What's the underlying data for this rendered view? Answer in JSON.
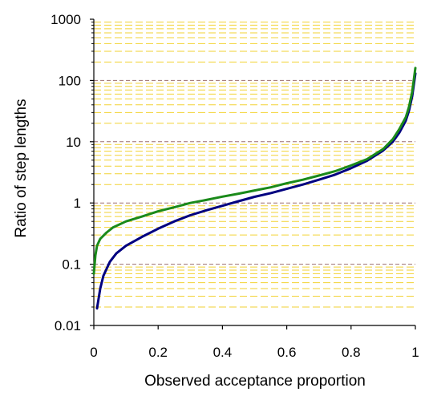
{
  "chart_data": {
    "type": "line",
    "title": "",
    "xlabel": "Observed acceptance proportion",
    "ylabel": "Ratio of step lengths",
    "xlim": [
      0,
      1
    ],
    "ylim": [
      0.01,
      1000
    ],
    "y_scale": "log",
    "x_ticks": [
      "0",
      "0.2",
      "0.4",
      "0.6",
      "0.8",
      "1"
    ],
    "y_ticks": [
      "0.01",
      "0.1",
      "1",
      "10",
      "100",
      "1000"
    ],
    "grid": "dashed horizontal lines at each decade (dark) and minor log steps (yellow)",
    "colors": {
      "major_grid": "#9c6f6f",
      "minor_grid": "#f2d233",
      "axis": "#000000"
    },
    "series": [
      {
        "color": "#000080",
        "x": [
          0.01,
          0.02,
          0.03,
          0.05,
          0.07,
          0.1,
          0.15,
          0.2,
          0.25,
          0.3,
          0.35,
          0.4,
          0.45,
          0.5,
          0.55,
          0.6,
          0.65,
          0.7,
          0.75,
          0.8,
          0.85,
          0.9,
          0.93,
          0.95,
          0.97,
          0.98,
          0.99,
          1.0
        ],
        "y": [
          0.019,
          0.04,
          0.065,
          0.11,
          0.15,
          0.2,
          0.28,
          0.38,
          0.5,
          0.63,
          0.76,
          0.9,
          1.07,
          1.26,
          1.45,
          1.7,
          2.0,
          2.4,
          2.9,
          3.7,
          4.9,
          7.2,
          10,
          14,
          22,
          32,
          55,
          130
        ]
      },
      {
        "color": "#1a8a1a",
        "x": [
          0.0,
          0.005,
          0.01,
          0.02,
          0.04,
          0.06,
          0.1,
          0.15,
          0.2,
          0.25,
          0.3,
          0.35,
          0.4,
          0.45,
          0.5,
          0.55,
          0.6,
          0.65,
          0.7,
          0.75,
          0.8,
          0.85,
          0.9,
          0.93,
          0.95,
          0.97,
          0.98,
          0.99,
          1.0
        ],
        "y": [
          0.07,
          0.14,
          0.2,
          0.26,
          0.33,
          0.4,
          0.5,
          0.6,
          0.73,
          0.85,
          1.0,
          1.12,
          1.27,
          1.42,
          1.6,
          1.8,
          2.1,
          2.4,
          2.8,
          3.3,
          4.1,
          5.2,
          7.6,
          11,
          16,
          25,
          37,
          65,
          160
        ]
      }
    ]
  }
}
